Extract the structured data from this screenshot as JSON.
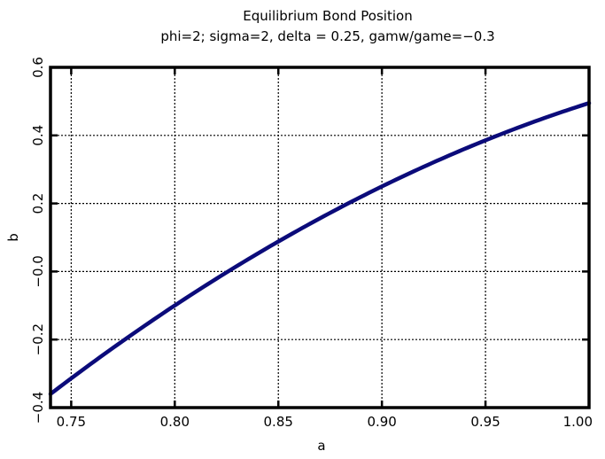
{
  "chart_data": {
    "type": "line",
    "title": "Equilibrium Bond Position",
    "subtitle": "phi=2; sigma=2, delta = 0.25, gamw/game=−0.3",
    "xlabel": "a",
    "ylabel": "b",
    "xlim": [
      0.74,
      1.0
    ],
    "ylim": [
      -0.4,
      0.6
    ],
    "grid": true,
    "x_ticks": [
      0.75,
      0.8,
      0.85,
      0.9,
      0.95,
      1.0
    ],
    "x_tick_labels": [
      "0.75",
      "0.80",
      "0.85",
      "0.90",
      "0.95",
      "1.00"
    ],
    "y_ticks": [
      -0.4,
      -0.2,
      0.0,
      0.2,
      0.4,
      0.6
    ],
    "y_tick_labels": [
      "−0.4",
      "−0.2",
      "−0.0",
      "0.2",
      "0.4",
      "0.6"
    ],
    "color": "#0b0b7a",
    "series": [
      {
        "x": [
          0.74,
          0.75,
          0.76,
          0.77,
          0.78,
          0.79,
          0.8,
          0.81,
          0.82,
          0.83,
          0.84,
          0.85,
          0.86,
          0.87,
          0.88,
          0.89,
          0.9,
          0.91,
          0.92,
          0.93,
          0.94,
          0.95,
          0.96,
          0.97,
          0.98,
          0.99,
          1.0
        ],
        "values": [
          -0.36,
          -0.315,
          -0.27,
          -0.227,
          -0.184,
          -0.143,
          -0.102,
          -0.063,
          -0.024,
          0.014,
          0.05,
          0.087,
          0.122,
          0.156,
          0.19,
          0.223,
          0.255,
          0.286,
          0.316,
          0.346,
          0.375,
          0.403,
          0.43,
          0.457,
          0.483,
          0.508,
          0.495
        ]
      }
    ]
  }
}
